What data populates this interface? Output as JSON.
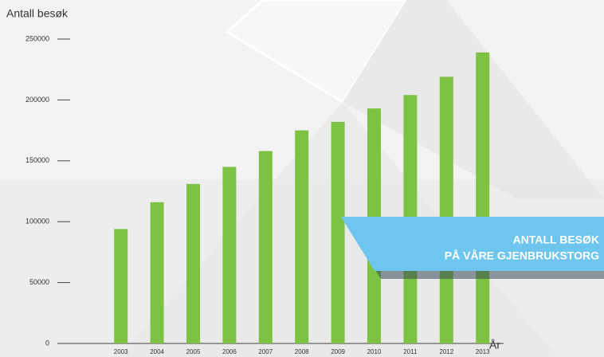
{
  "chart_data": {
    "type": "bar",
    "y_label": "Antall besøk",
    "x_label": "År",
    "annotation": [
      "ANTALL BESØK",
      "PÅ VÅRE GJENBRUKSTORG"
    ],
    "categories": [
      "2003",
      "2004",
      "2005",
      "2006",
      "2007",
      "2008",
      "2009",
      "2010",
      "2011",
      "2012",
      "2013"
    ],
    "values": [
      94000,
      116000,
      131000,
      145000,
      158000,
      175000,
      182000,
      193000,
      204000,
      219000,
      239000
    ],
    "color": "#7dc242",
    "ylim": [
      0,
      250000
    ],
    "yticks": [
      0,
      50000,
      100000,
      150000,
      200000,
      250000
    ]
  }
}
